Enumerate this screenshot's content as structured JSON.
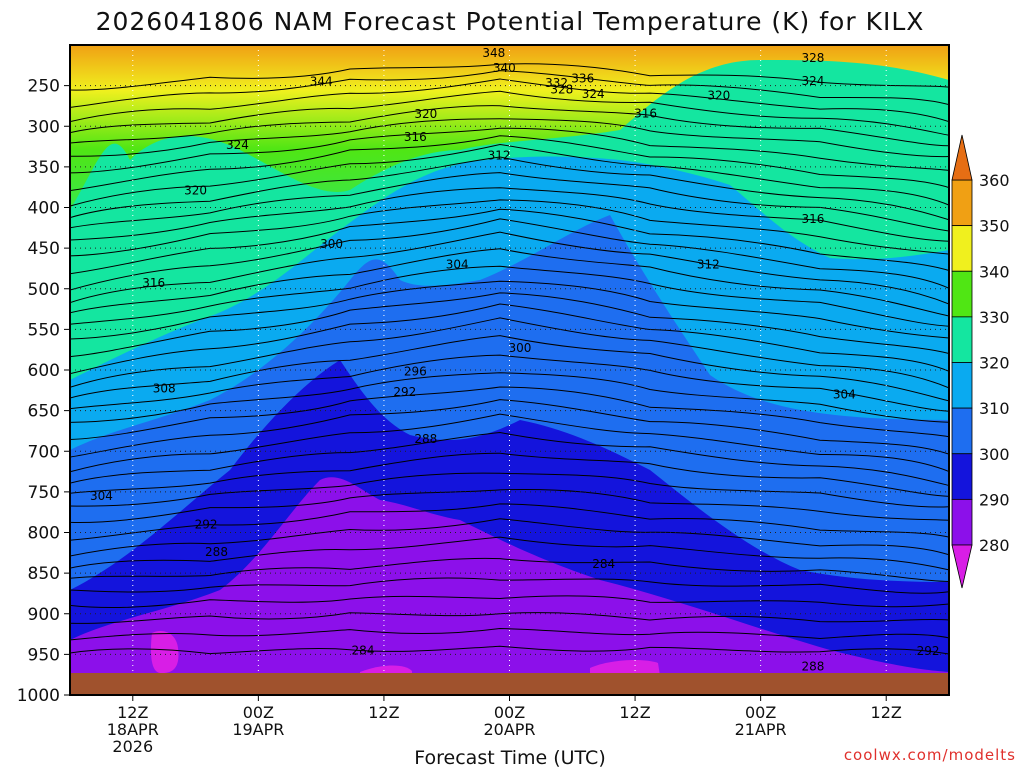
{
  "chart_data": {
    "type": "heatmap",
    "title": "2026041806 NAM Forecast Potential Temperature (K) for KILX",
    "xlabel": "Forecast Time (UTC)",
    "ylabel": "",
    "y_ticks": [
      "250",
      "300",
      "350",
      "400",
      "450",
      "500",
      "550",
      "600",
      "650",
      "700",
      "750",
      "800",
      "850",
      "900",
      "950",
      "1000"
    ],
    "y_values": [
      250,
      300,
      350,
      400,
      450,
      500,
      550,
      600,
      650,
      700,
      750,
      800,
      850,
      900,
      950,
      1000
    ],
    "ylim": [
      200,
      1000
    ],
    "x_ticks": [
      {
        "hour": 6,
        "line1": "12Z",
        "line2": "18APR",
        "line3": "2026"
      },
      {
        "hour": 18,
        "line1": "00Z",
        "line2": "19APR",
        "line3": ""
      },
      {
        "hour": 30,
        "line1": "12Z",
        "line2": "",
        "line3": ""
      },
      {
        "hour": 42,
        "line1": "00Z",
        "line2": "20APR",
        "line3": ""
      },
      {
        "hour": 54,
        "line1": "12Z",
        "line2": "",
        "line3": ""
      },
      {
        "hour": 66,
        "line1": "00Z",
        "line2": "21APR",
        "line3": ""
      },
      {
        "hour": 78,
        "line1": "12Z",
        "line2": "",
        "line3": ""
      }
    ],
    "xlim_hours": [
      0,
      84
    ],
    "colorbar": {
      "levels": [
        280,
        290,
        300,
        310,
        320,
        330,
        340,
        350,
        360
      ],
      "labels": [
        "280",
        "290",
        "300",
        "310",
        "320",
        "330",
        "340",
        "350",
        "360"
      ],
      "colors": [
        "#d81ee6",
        "#8c10ea",
        "#1414dc",
        "#1e6ef0",
        "#0aaaf0",
        "#14e6a0",
        "#50e614",
        "#f0f01e",
        "#f0a014",
        "#e66e14"
      ]
    },
    "contour_interval": 2,
    "contour_labels": [
      {
        "text": "348",
        "hour": 40.5,
        "p": 210
      },
      {
        "text": "340",
        "hour": 41.5,
        "p": 228
      },
      {
        "text": "336",
        "hour": 49.0,
        "p": 241
      },
      {
        "text": "332",
        "hour": 46.5,
        "p": 247
      },
      {
        "text": "328",
        "hour": 47.0,
        "p": 255
      },
      {
        "text": "324",
        "hour": 50.0,
        "p": 260
      },
      {
        "text": "344",
        "hour": 24.0,
        "p": 245
      },
      {
        "text": "328",
        "hour": 71.0,
        "p": 216
      },
      {
        "text": "324",
        "hour": 71.0,
        "p": 244
      },
      {
        "text": "320",
        "hour": 62.0,
        "p": 262
      },
      {
        "text": "320",
        "hour": 34.0,
        "p": 285
      },
      {
        "text": "316",
        "hour": 55.0,
        "p": 284
      },
      {
        "text": "316",
        "hour": 33.0,
        "p": 313
      },
      {
        "text": "312",
        "hour": 41.0,
        "p": 336
      },
      {
        "text": "324",
        "hour": 16.0,
        "p": 323
      },
      {
        "text": "320",
        "hour": 12.0,
        "p": 379
      },
      {
        "text": "316",
        "hour": 71.0,
        "p": 414
      },
      {
        "text": "300",
        "hour": 25.0,
        "p": 445
      },
      {
        "text": "304",
        "hour": 37.0,
        "p": 470
      },
      {
        "text": "312",
        "hour": 61.0,
        "p": 470
      },
      {
        "text": "316",
        "hour": 8.0,
        "p": 493
      },
      {
        "text": "300",
        "hour": 43.0,
        "p": 573
      },
      {
        "text": "296",
        "hour": 33.0,
        "p": 602
      },
      {
        "text": "292",
        "hour": 32.0,
        "p": 627
      },
      {
        "text": "308",
        "hour": 9.0,
        "p": 623
      },
      {
        "text": "304",
        "hour": 74.0,
        "p": 630
      },
      {
        "text": "288",
        "hour": 34.0,
        "p": 685
      },
      {
        "text": "304",
        "hour": 3.0,
        "p": 755
      },
      {
        "text": "292",
        "hour": 13.0,
        "p": 790
      },
      {
        "text": "288",
        "hour": 14.0,
        "p": 824
      },
      {
        "text": "284",
        "hour": 51.0,
        "p": 839
      },
      {
        "text": "284",
        "hour": 28.0,
        "p": 945
      },
      {
        "text": "288",
        "hour": 71.0,
        "p": 965
      },
      {
        "text": "292",
        "hour": 82.0,
        "p": 946
      }
    ]
  },
  "credit": "coolwx.com/modelts"
}
